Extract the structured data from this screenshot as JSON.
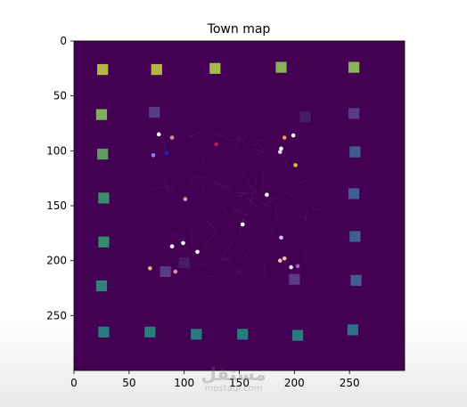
{
  "chart_data": {
    "type": "scatter",
    "title": "Town map",
    "xlabel": "",
    "ylabel": "",
    "xlim": [
      0,
      300
    ],
    "ylim": [
      300,
      0
    ],
    "x_ticks": [
      0,
      50,
      100,
      150,
      200,
      250
    ],
    "y_ticks": [
      0,
      50,
      100,
      150,
      200,
      250
    ],
    "grid": false,
    "background_color": "#440154",
    "buildings": [
      {
        "x": 26,
        "y": 26,
        "color": "#b5b648"
      },
      {
        "x": 75,
        "y": 26,
        "color": "#b5b648"
      },
      {
        "x": 128,
        "y": 25,
        "color": "#a7b84c"
      },
      {
        "x": 188,
        "y": 24,
        "color": "#88b15a"
      },
      {
        "x": 254,
        "y": 24,
        "color": "#8cb55a"
      },
      {
        "x": 25,
        "y": 67,
        "color": "#7fb05c"
      },
      {
        "x": 73,
        "y": 65,
        "color": "#5b3a86"
      },
      {
        "x": 210,
        "y": 69,
        "color": "#4a1a64"
      },
      {
        "x": 254,
        "y": 66,
        "color": "#5b3a86"
      },
      {
        "x": 26,
        "y": 103,
        "color": "#5e9a63"
      },
      {
        "x": 255,
        "y": 101,
        "color": "#3f5f93"
      },
      {
        "x": 27,
        "y": 143,
        "color": "#3d8c6e"
      },
      {
        "x": 254,
        "y": 139,
        "color": "#3f5e96"
      },
      {
        "x": 27,
        "y": 183,
        "color": "#358b71"
      },
      {
        "x": 255,
        "y": 178,
        "color": "#3f5f93"
      },
      {
        "x": 25,
        "y": 223,
        "color": "#35807a"
      },
      {
        "x": 83,
        "y": 210,
        "color": "#5a3a86"
      },
      {
        "x": 100,
        "y": 202,
        "color": "#4a1a64"
      },
      {
        "x": 200,
        "y": 217,
        "color": "#5b3a86"
      },
      {
        "x": 256,
        "y": 218,
        "color": "#3f5f93"
      },
      {
        "x": 27,
        "y": 265,
        "color": "#2b7a80"
      },
      {
        "x": 69,
        "y": 265,
        "color": "#2c7b7d"
      },
      {
        "x": 111,
        "y": 267,
        "color": "#2b7a80"
      },
      {
        "x": 153,
        "y": 267,
        "color": "#2b7a80"
      },
      {
        "x": 203,
        "y": 268,
        "color": "#2b7a80"
      },
      {
        "x": 253,
        "y": 263,
        "color": "#2f6f8a"
      }
    ],
    "agents": [
      {
        "x": 77,
        "y": 85,
        "color": "#ffffff"
      },
      {
        "x": 89,
        "y": 88,
        "color": "#d98a9a"
      },
      {
        "x": 72,
        "y": 104,
        "color": "#a080e0"
      },
      {
        "x": 84,
        "y": 102,
        "color": "#2020c0"
      },
      {
        "x": 129,
        "y": 94,
        "color": "#b02050"
      },
      {
        "x": 191,
        "y": 88,
        "color": "#e8a040"
      },
      {
        "x": 199,
        "y": 86,
        "color": "#ffffff"
      },
      {
        "x": 188,
        "y": 98,
        "color": "#ffffff"
      },
      {
        "x": 187,
        "y": 101,
        "color": "#dddddd"
      },
      {
        "x": 201,
        "y": 113,
        "color": "#e0c040"
      },
      {
        "x": 175,
        "y": 140,
        "color": "#ffffff"
      },
      {
        "x": 101,
        "y": 144,
        "color": "#e090a0"
      },
      {
        "x": 153,
        "y": 167,
        "color": "#ffffff"
      },
      {
        "x": 188,
        "y": 179,
        "color": "#d0c0f0"
      },
      {
        "x": 89,
        "y": 187,
        "color": "#ffffff"
      },
      {
        "x": 99,
        "y": 184,
        "color": "#ffffff"
      },
      {
        "x": 112,
        "y": 192,
        "color": "#ffffff"
      },
      {
        "x": 187,
        "y": 200,
        "color": "#e8c0a0"
      },
      {
        "x": 191,
        "y": 198,
        "color": "#e8c0a0"
      },
      {
        "x": 197,
        "y": 206,
        "color": "#e0e0ff"
      },
      {
        "x": 203,
        "y": 205,
        "color": "#a060c0"
      },
      {
        "x": 69,
        "y": 207,
        "color": "#e8b870"
      },
      {
        "x": 92,
        "y": 210,
        "color": "#e090b0"
      }
    ]
  },
  "watermark": {
    "main": "مستقل",
    "sub": "mostaql.com"
  }
}
